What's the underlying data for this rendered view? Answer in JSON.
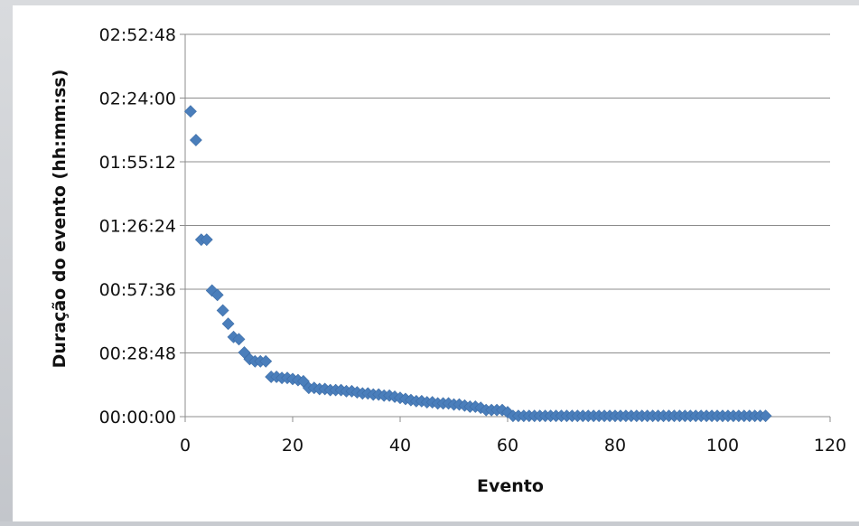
{
  "chart_data": {
    "type": "scatter",
    "title": "",
    "xlabel": "Evento",
    "ylabel": "Duração do evento (hh:mm:ss)",
    "xlim": [
      0,
      120
    ],
    "ylim_seconds": [
      0,
      10368
    ],
    "x_ticks": [
      0,
      20,
      40,
      60,
      80,
      100,
      120
    ],
    "y_tick_labels": [
      "00:00:00",
      "00:28:48",
      "00:57:36",
      "01:26:24",
      "01:55:12",
      "02:24:00",
      "02:52:48"
    ],
    "y_tick_values_seconds": [
      0,
      1728,
      3456,
      5184,
      6912,
      8640,
      10368
    ],
    "grid": "horizontal",
    "legend": "none",
    "marker": "diamond",
    "color": "#4a7ebb",
    "series": [
      {
        "points": [
          [
            1,
            8280
          ],
          [
            2,
            7500
          ],
          [
            3,
            4800
          ],
          [
            4,
            4800
          ],
          [
            5,
            3420
          ],
          [
            6,
            3300
          ],
          [
            7,
            2880
          ],
          [
            8,
            2520
          ],
          [
            9,
            2160
          ],
          [
            10,
            2100
          ],
          [
            11,
            1740
          ],
          [
            12,
            1560
          ],
          [
            13,
            1500
          ],
          [
            14,
            1500
          ],
          [
            15,
            1500
          ],
          [
            16,
            1080
          ],
          [
            17,
            1080
          ],
          [
            18,
            1050
          ],
          [
            19,
            1050
          ],
          [
            20,
            1020
          ],
          [
            21,
            990
          ],
          [
            22,
            960
          ],
          [
            23,
            780
          ],
          [
            24,
            780
          ],
          [
            25,
            750
          ],
          [
            26,
            750
          ],
          [
            27,
            720
          ],
          [
            28,
            720
          ],
          [
            29,
            720
          ],
          [
            30,
            690
          ],
          [
            31,
            690
          ],
          [
            32,
            660
          ],
          [
            33,
            630
          ],
          [
            34,
            630
          ],
          [
            35,
            600
          ],
          [
            36,
            600
          ],
          [
            37,
            570
          ],
          [
            38,
            570
          ],
          [
            39,
            540
          ],
          [
            40,
            510
          ],
          [
            41,
            480
          ],
          [
            42,
            450
          ],
          [
            43,
            420
          ],
          [
            44,
            420
          ],
          [
            45,
            390
          ],
          [
            46,
            390
          ],
          [
            47,
            360
          ],
          [
            48,
            360
          ],
          [
            49,
            360
          ],
          [
            50,
            330
          ],
          [
            51,
            330
          ],
          [
            52,
            300
          ],
          [
            53,
            270
          ],
          [
            54,
            270
          ],
          [
            55,
            240
          ],
          [
            56,
            180
          ],
          [
            57,
            180
          ],
          [
            58,
            180
          ],
          [
            59,
            180
          ],
          [
            60,
            120
          ],
          [
            61,
            20
          ],
          [
            62,
            20
          ],
          [
            63,
            20
          ],
          [
            64,
            20
          ],
          [
            65,
            20
          ],
          [
            66,
            20
          ],
          [
            67,
            20
          ],
          [
            68,
            20
          ],
          [
            69,
            20
          ],
          [
            70,
            20
          ],
          [
            71,
            20
          ],
          [
            72,
            20
          ],
          [
            73,
            20
          ],
          [
            74,
            20
          ],
          [
            75,
            20
          ],
          [
            76,
            20
          ],
          [
            77,
            20
          ],
          [
            78,
            20
          ],
          [
            79,
            20
          ],
          [
            80,
            20
          ],
          [
            81,
            20
          ],
          [
            82,
            20
          ],
          [
            83,
            20
          ],
          [
            84,
            20
          ],
          [
            85,
            20
          ],
          [
            86,
            20
          ],
          [
            87,
            20
          ],
          [
            88,
            20
          ],
          [
            89,
            20
          ],
          [
            90,
            20
          ],
          [
            91,
            20
          ],
          [
            92,
            20
          ],
          [
            93,
            20
          ],
          [
            94,
            20
          ],
          [
            95,
            20
          ],
          [
            96,
            20
          ],
          [
            97,
            20
          ],
          [
            98,
            20
          ],
          [
            99,
            20
          ],
          [
            100,
            20
          ],
          [
            101,
            20
          ],
          [
            102,
            20
          ],
          [
            103,
            20
          ],
          [
            104,
            20
          ],
          [
            105,
            20
          ],
          [
            106,
            20
          ],
          [
            107,
            20
          ],
          [
            108,
            20
          ]
        ]
      }
    ]
  }
}
